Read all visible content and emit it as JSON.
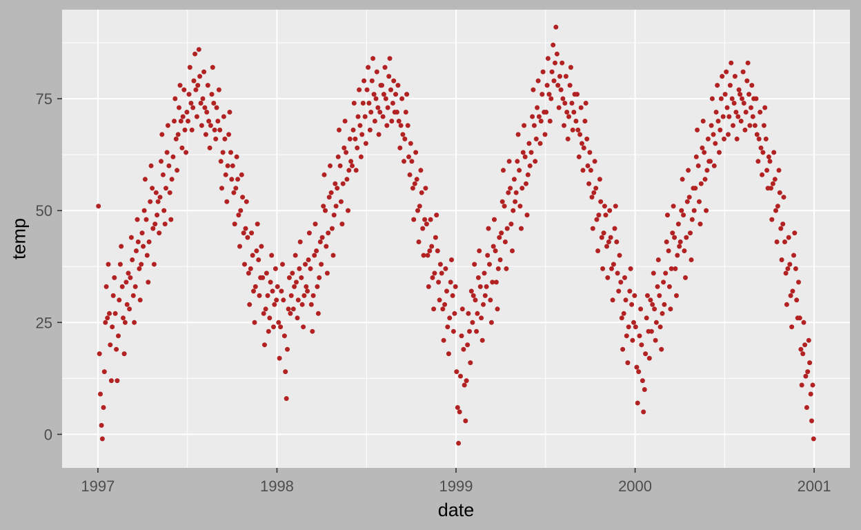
{
  "chart_data": {
    "type": "scatter",
    "title": "",
    "xlabel": "date",
    "ylabel": "temp",
    "xlim": [
      1996.8,
      2001.2
    ],
    "ylim": [
      -7.5,
      94.9
    ],
    "x_major_ticks": [
      1997,
      1998,
      1999,
      2000,
      2001
    ],
    "x_tick_labels": [
      "1997",
      "1998",
      "1999",
      "2000",
      "2001"
    ],
    "x_minor_ticks": [
      1997.5,
      1998.5,
      1999.5,
      2000.5
    ],
    "y_major_ticks": [
      0,
      25,
      50,
      75
    ],
    "y_tick_labels": [
      "0",
      "25",
      "50",
      "75"
    ],
    "y_minor_ticks": [
      12.5,
      37.5,
      62.5,
      87.5
    ],
    "legend": "none",
    "grid": "on",
    "colors": {
      "point": "#B22222",
      "panel_bg": "#EBEBEB",
      "grid": "#FFFFFF",
      "outer_bg": "#B9B9B9",
      "tick_label": "#4D4D4D",
      "tick_mark": "#333333",
      "axis_title": "#000000"
    },
    "point_radius": 3.5,
    "x": [
      1997.003,
      1997.009,
      1997.014,
      1997.02,
      1997.025,
      1997.031,
      1997.036,
      1997.042,
      1997.047,
      1997.053,
      1997.058,
      1997.064,
      1997.069,
      1997.075,
      1997.08,
      1997.086,
      1997.092,
      1997.097,
      1997.103,
      1997.108,
      1997.114,
      1997.119,
      1997.125,
      1997.13,
      1997.136,
      1997.141,
      1997.147,
      1997.152,
      1997.158,
      1997.163,
      1997.17,
      1997.176,
      1997.181,
      1997.187,
      1997.192,
      1997.198,
      1997.203,
      1997.209,
      1997.214,
      1997.22,
      1997.225,
      1997.231,
      1997.236,
      1997.242,
      1997.247,
      1997.253,
      1997.259,
      1997.264,
      1997.27,
      1997.275,
      1997.281,
      1997.286,
      1997.292,
      1997.297,
      1997.303,
      1997.308,
      1997.314,
      1997.319,
      1997.325,
      1997.33,
      1997.336,
      1997.342,
      1997.347,
      1997.353,
      1997.358,
      1997.364,
      1997.369,
      1997.375,
      1997.38,
      1997.386,
      1997.391,
      1997.397,
      1997.402,
      1997.408,
      1997.413,
      1997.42,
      1997.426,
      1997.431,
      1997.437,
      1997.442,
      1997.448,
      1997.453,
      1997.459,
      1997.464,
      1997.47,
      1997.475,
      1997.481,
      1997.486,
      1997.492,
      1997.497,
      1997.503,
      1997.509,
      1997.514,
      1997.52,
      1997.525,
      1997.531,
      1997.536,
      1997.542,
      1997.547,
      1997.553,
      1997.558,
      1997.564,
      1997.569,
      1997.575,
      1997.58,
      1997.586,
      1997.592,
      1997.597,
      1997.603,
      1997.608,
      1997.614,
      1997.619,
      1997.625,
      1997.63,
      1997.636,
      1997.641,
      1997.647,
      1997.652,
      1997.658,
      1997.663,
      1997.67,
      1997.676,
      1997.681,
      1997.687,
      1997.692,
      1997.698,
      1997.703,
      1997.709,
      1997.714,
      1997.72,
      1997.725,
      1997.731,
      1997.736,
      1997.742,
      1997.747,
      1997.753,
      1997.759,
      1997.764,
      1997.77,
      1997.775,
      1997.781,
      1997.786,
      1997.792,
      1997.797,
      1997.803,
      1997.808,
      1997.814,
      1997.819,
      1997.825,
      1997.83,
      1997.836,
      1997.842,
      1997.847,
      1997.853,
      1997.858,
      1997.864,
      1997.869,
      1997.875,
      1997.88,
      1997.886,
      1997.891,
      1997.897,
      1997.902,
      1997.908,
      1997.913,
      1997.92,
      1997.926,
      1997.931,
      1997.937,
      1997.942,
      1997.948,
      1997.953,
      1997.959,
      1997.964,
      1997.97,
      1997.975,
      1997.981,
      1997.986,
      1997.992,
      1997.997,
      1998.003,
      1998.009,
      1998.014,
      1998.02,
      1998.025,
      1998.031,
      1998.036,
      1998.042,
      1998.047,
      1998.053,
      1998.058,
      1998.064,
      1998.069,
      1998.075,
      1998.08,
      1998.086,
      1998.092,
      1998.097,
      1998.103,
      1998.108,
      1998.114,
      1998.119,
      1998.125,
      1998.13,
      1998.136,
      1998.141,
      1998.147,
      1998.152,
      1998.158,
      1998.163,
      1998.17,
      1998.176,
      1998.181,
      1998.187,
      1998.192,
      1998.198,
      1998.203,
      1998.209,
      1998.214,
      1998.22,
      1998.225,
      1998.231,
      1998.236,
      1998.242,
      1998.247,
      1998.253,
      1998.259,
      1998.264,
      1998.27,
      1998.275,
      1998.281,
      1998.286,
      1998.292,
      1998.297,
      1998.303,
      1998.308,
      1998.314,
      1998.319,
      1998.325,
      1998.33,
      1998.336,
      1998.342,
      1998.347,
      1998.353,
      1998.358,
      1998.364,
      1998.369,
      1998.375,
      1998.38,
      1998.386,
      1998.391,
      1998.397,
      1998.402,
      1998.408,
      1998.413,
      1998.42,
      1998.426,
      1998.431,
      1998.437,
      1998.442,
      1998.448,
      1998.453,
      1998.459,
      1998.464,
      1998.47,
      1998.475,
      1998.481,
      1998.486,
      1998.492,
      1998.497,
      1998.503,
      1998.509,
      1998.514,
      1998.52,
      1998.525,
      1998.531,
      1998.536,
      1998.542,
      1998.547,
      1998.553,
      1998.558,
      1998.564,
      1998.569,
      1998.575,
      1998.58,
      1998.586,
      1998.592,
      1998.597,
      1998.603,
      1998.608,
      1998.614,
      1998.619,
      1998.625,
      1998.63,
      1998.636,
      1998.641,
      1998.647,
      1998.652,
      1998.658,
      1998.663,
      1998.67,
      1998.676,
      1998.681,
      1998.687,
      1998.692,
      1998.698,
      1998.703,
      1998.709,
      1998.714,
      1998.72,
      1998.725,
      1998.731,
      1998.736,
      1998.742,
      1998.747,
      1998.753,
      1998.759,
      1998.764,
      1998.77,
      1998.775,
      1998.781,
      1998.786,
      1998.792,
      1998.797,
      1998.803,
      1998.808,
      1998.814,
      1998.819,
      1998.825,
      1998.83,
      1998.836,
      1998.842,
      1998.847,
      1998.853,
      1998.858,
      1998.864,
      1998.869,
      1998.875,
      1998.88,
      1998.886,
      1998.891,
      1998.897,
      1998.902,
      1998.908,
      1998.913,
      1998.92,
      1998.926,
      1998.931,
      1998.937,
      1998.942,
      1998.948,
      1998.953,
      1998.959,
      1998.964,
      1998.97,
      1998.975,
      1998.981,
      1998.986,
      1998.992,
      1998.997,
      1999.003,
      1999.009,
      1999.014,
      1999.02,
      1999.025,
      1999.031,
      1999.036,
      1999.042,
      1999.047,
      1999.053,
      1999.058,
      1999.064,
      1999.069,
      1999.075,
      1999.08,
      1999.086,
      1999.092,
      1999.097,
      1999.103,
      1999.108,
      1999.114,
      1999.119,
      1999.125,
      1999.13,
      1999.136,
      1999.141,
      1999.147,
      1999.152,
      1999.158,
      1999.163,
      1999.17,
      1999.176,
      1999.181,
      1999.187,
      1999.192,
      1999.198,
      1999.203,
      1999.209,
      1999.214,
      1999.22,
      1999.225,
      1999.231,
      1999.236,
      1999.242,
      1999.247,
      1999.253,
      1999.259,
      1999.264,
      1999.27,
      1999.275,
      1999.281,
      1999.286,
      1999.292,
      1999.297,
      1999.303,
      1999.308,
      1999.314,
      1999.319,
      1999.325,
      1999.33,
      1999.336,
      1999.342,
      1999.347,
      1999.353,
      1999.358,
      1999.364,
      1999.369,
      1999.375,
      1999.38,
      1999.386,
      1999.391,
      1999.397,
      1999.402,
      1999.408,
      1999.413,
      1999.42,
      1999.426,
      1999.431,
      1999.437,
      1999.442,
      1999.448,
      1999.453,
      1999.459,
      1999.464,
      1999.47,
      1999.475,
      1999.481,
      1999.486,
      1999.492,
      1999.497,
      1999.503,
      1999.509,
      1999.514,
      1999.52,
      1999.525,
      1999.531,
      1999.536,
      1999.542,
      1999.547,
      1999.553,
      1999.558,
      1999.564,
      1999.569,
      1999.575,
      1999.58,
      1999.586,
      1999.592,
      1999.597,
      1999.603,
      1999.608,
      1999.614,
      1999.619,
      1999.625,
      1999.63,
      1999.636,
      1999.641,
      1999.647,
      1999.652,
      1999.658,
      1999.663,
      1999.67,
      1999.676,
      1999.681,
      1999.687,
      1999.692,
      1999.698,
      1999.703,
      1999.709,
      1999.714,
      1999.72,
      1999.725,
      1999.731,
      1999.736,
      1999.742,
      1999.747,
      1999.753,
      1999.759,
      1999.764,
      1999.77,
      1999.775,
      1999.781,
      1999.786,
      1999.792,
      1999.797,
      1999.803,
      1999.808,
      1999.814,
      1999.819,
      1999.825,
      1999.83,
      1999.836,
      1999.842,
      1999.847,
      1999.853,
      1999.858,
      1999.864,
      1999.869,
      1999.875,
      1999.88,
      1999.886,
      1999.891,
      1999.897,
      1999.902,
      1999.908,
      1999.913,
      1999.92,
      1999.926,
      1999.931,
      1999.937,
      1999.942,
      1999.948,
      1999.953,
      1999.959,
      1999.964,
      1999.97,
      1999.975,
      1999.981,
      1999.986,
      1999.992,
      1999.997,
      2000.003,
      2000.009,
      2000.014,
      2000.02,
      2000.025,
      2000.031,
      2000.036,
      2000.042,
      2000.047,
      2000.053,
      2000.058,
      2000.064,
      2000.069,
      2000.075,
      2000.08,
      2000.086,
      2000.092,
      2000.097,
      2000.103,
      2000.108,
      2000.114,
      2000.119,
      2000.125,
      2000.13,
      2000.136,
      2000.141,
      2000.147,
      2000.152,
      2000.158,
      2000.163,
      2000.17,
      2000.176,
      2000.181,
      2000.187,
      2000.192,
      2000.198,
      2000.203,
      2000.209,
      2000.214,
      2000.22,
      2000.225,
      2000.231,
      2000.236,
      2000.242,
      2000.247,
      2000.253,
      2000.259,
      2000.264,
      2000.27,
      2000.275,
      2000.281,
      2000.286,
      2000.292,
      2000.297,
      2000.303,
      2000.308,
      2000.314,
      2000.319,
      2000.325,
      2000.33,
      2000.336,
      2000.342,
      2000.347,
      2000.353,
      2000.358,
      2000.364,
      2000.369,
      2000.375,
      2000.38,
      2000.386,
      2000.391,
      2000.397,
      2000.402,
      2000.408,
      2000.413,
      2000.42,
      2000.426,
      2000.431,
      2000.437,
      2000.442,
      2000.448,
      2000.453,
      2000.459,
      2000.464,
      2000.47,
      2000.475,
      2000.481,
      2000.486,
      2000.492,
      2000.497,
      2000.503,
      2000.509,
      2000.514,
      2000.52,
      2000.525,
      2000.531,
      2000.536,
      2000.542,
      2000.547,
      2000.553,
      2000.558,
      2000.564,
      2000.569,
      2000.575,
      2000.58,
      2000.586,
      2000.592,
      2000.597,
      2000.603,
      2000.608,
      2000.614,
      2000.619,
      2000.625,
      2000.63,
      2000.636,
      2000.641,
      2000.647,
      2000.652,
      2000.658,
      2000.663,
      2000.67,
      2000.676,
      2000.681,
      2000.687,
      2000.692,
      2000.698,
      2000.703,
      2000.709,
      2000.714,
      2000.72,
      2000.725,
      2000.731,
      2000.736,
      2000.742,
      2000.747,
      2000.753,
      2000.759,
      2000.764,
      2000.77,
      2000.775,
      2000.781,
      2000.786,
      2000.792,
      2000.797,
      2000.803,
      2000.808,
      2000.814,
      2000.819,
      2000.825,
      2000.83,
      2000.836,
      2000.842,
      2000.847,
      2000.853,
      2000.858,
      2000.864,
      2000.869,
      2000.875,
      2000.88,
      2000.886,
      2000.891,
      2000.897,
      2000.902,
      2000.908,
      2000.913,
      2000.92,
      2000.926,
      2000.931,
      2000.937,
      2000.942,
      2000.948,
      2000.953,
      2000.959,
      2000.964,
      2000.97,
      2000.975,
      2000.981,
      2000.986,
      2000.992,
      2000.997
    ],
    "y": [
      51,
      18,
      9,
      2,
      -1,
      6,
      14,
      25,
      33,
      26,
      38,
      27,
      20,
      12,
      24,
      31,
      35,
      27,
      19,
      12,
      22,
      30,
      38,
      42,
      33,
      26,
      18,
      25,
      34,
      29,
      36,
      28,
      35,
      44,
      39,
      31,
      25,
      33,
      41,
      48,
      43,
      37,
      30,
      38,
      45,
      42,
      50,
      57,
      48,
      40,
      34,
      43,
      52,
      60,
      55,
      46,
      38,
      47,
      54,
      49,
      52,
      45,
      53,
      61,
      67,
      58,
      50,
      47,
      55,
      63,
      69,
      60,
      54,
      48,
      57,
      62,
      70,
      75,
      66,
      59,
      67,
      73,
      78,
      70,
      64,
      71,
      77,
      68,
      63,
      72,
      70,
      76,
      82,
      74,
      68,
      73,
      79,
      85,
      77,
      71,
      78,
      86,
      80,
      74,
      69,
      75,
      81,
      73,
      67,
      72,
      78,
      70,
      64,
      69,
      76,
      82,
      74,
      68,
      66,
      73,
      70,
      77,
      68,
      61,
      55,
      63,
      71,
      66,
      58,
      52,
      60,
      67,
      72,
      63,
      57,
      60,
      54,
      47,
      55,
      62,
      57,
      49,
      42,
      50,
      58,
      53,
      45,
      38,
      46,
      52,
      44,
      36,
      29,
      37,
      45,
      40,
      32,
      25,
      33,
      41,
      47,
      39,
      31,
      35,
      42,
      35,
      27,
      20,
      28,
      36,
      31,
      23,
      26,
      34,
      40,
      32,
      24,
      29,
      37,
      30,
      33,
      25,
      17,
      24,
      32,
      38,
      30,
      22,
      14,
      8,
      19,
      28,
      35,
      27,
      31,
      36,
      28,
      33,
      40,
      34,
      26,
      30,
      37,
      43,
      35,
      29,
      24,
      31,
      38,
      33,
      32,
      39,
      45,
      37,
      29,
      23,
      31,
      40,
      47,
      41,
      33,
      27,
      35,
      43,
      38,
      44,
      51,
      58,
      50,
      42,
      36,
      45,
      53,
      60,
      54,
      46,
      40,
      49,
      56,
      51,
      55,
      62,
      68,
      60,
      52,
      47,
      56,
      64,
      70,
      63,
      57,
      50,
      59,
      66,
      61,
      60,
      68,
      74,
      66,
      59,
      64,
      71,
      77,
      69,
      62,
      67,
      74,
      79,
      71,
      65,
      77,
      82,
      74,
      68,
      72,
      79,
      84,
      76,
      70,
      75,
      81,
      73,
      67,
      72,
      78,
      78,
      71,
      76,
      82,
      75,
      69,
      73,
      80,
      84,
      77,
      70,
      74,
      79,
      72,
      76,
      72,
      78,
      70,
      64,
      69,
      75,
      67,
      61,
      66,
      72,
      76,
      69,
      62,
      58,
      65,
      61,
      55,
      48,
      56,
      63,
      57,
      50,
      43,
      51,
      59,
      54,
      46,
      40,
      48,
      55,
      47,
      40,
      33,
      41,
      48,
      42,
      35,
      28,
      36,
      44,
      49,
      41,
      34,
      30,
      38,
      36,
      28,
      21,
      29,
      37,
      32,
      24,
      18,
      26,
      34,
      39,
      31,
      23,
      27,
      33,
      14,
      6,
      -2,
      5,
      13,
      22,
      28,
      19,
      11,
      3,
      12,
      20,
      27,
      23,
      16,
      32,
      25,
      31,
      38,
      30,
      23,
      27,
      35,
      41,
      33,
      26,
      21,
      29,
      36,
      31,
      33,
      40,
      46,
      38,
      30,
      25,
      34,
      42,
      48,
      41,
      34,
      28,
      37,
      44,
      39,
      45,
      52,
      59,
      51,
      43,
      37,
      46,
      54,
      61,
      55,
      47,
      41,
      50,
      57,
      52,
      54,
      61,
      67,
      59,
      51,
      46,
      55,
      63,
      69,
      62,
      56,
      49,
      58,
      65,
      60,
      63,
      71,
      77,
      69,
      61,
      66,
      73,
      79,
      71,
      65,
      70,
      76,
      81,
      72,
      67,
      72,
      78,
      84,
      76,
      70,
      75,
      81,
      87,
      79,
      83,
      91,
      85,
      78,
      73,
      80,
      77,
      83,
      75,
      69,
      74,
      80,
      72,
      66,
      71,
      78,
      82,
      74,
      68,
      72,
      76,
      70,
      76,
      68,
      62,
      67,
      73,
      65,
      59,
      64,
      70,
      74,
      66,
      60,
      56,
      63,
      59,
      53,
      46,
      54,
      61,
      55,
      48,
      41,
      49,
      57,
      52,
      44,
      37,
      45,
      51,
      49,
      42,
      35,
      43,
      50,
      44,
      37,
      30,
      38,
      46,
      51,
      43,
      36,
      32,
      40,
      34,
      26,
      19,
      27,
      35,
      30,
      22,
      16,
      24,
      32,
      37,
      29,
      21,
      25,
      31,
      24,
      15,
      7,
      14,
      22,
      28,
      20,
      12,
      5,
      10,
      18,
      26,
      31,
      23,
      17,
      30,
      23,
      29,
      36,
      28,
      21,
      25,
      33,
      39,
      31,
      24,
      19,
      27,
      34,
      29,
      36,
      43,
      49,
      41,
      33,
      28,
      37,
      45,
      51,
      44,
      37,
      31,
      40,
      47,
      42,
      43,
      50,
      57,
      49,
      41,
      35,
      44,
      52,
      59,
      53,
      45,
      39,
      48,
      55,
      50,
      55,
      62,
      68,
      60,
      52,
      47,
      56,
      64,
      70,
      63,
      57,
      50,
      59,
      66,
      61,
      61,
      69,
      75,
      67,
      60,
      65,
      72,
      78,
      70,
      63,
      68,
      75,
      80,
      71,
      66,
      76,
      81,
      73,
      67,
      71,
      78,
      83,
      75,
      69,
      74,
      80,
      72,
      66,
      71,
      77,
      76,
      70,
      75,
      81,
      74,
      68,
      72,
      79,
      83,
      76,
      69,
      73,
      78,
      71,
      75,
      69,
      75,
      67,
      61,
      66,
      72,
      64,
      58,
      63,
      69,
      73,
      66,
      59,
      55,
      62,
      61,
      55,
      48,
      56,
      63,
      57,
      50,
      43,
      51,
      59,
      54,
      46,
      39,
      47,
      53,
      43,
      36,
      29,
      37,
      44,
      38,
      31,
      24,
      32,
      40,
      45,
      37,
      30,
      26,
      34,
      26,
      19,
      11,
      18,
      25,
      20,
      13,
      6,
      14,
      21,
      16,
      9,
      3,
      11,
      -1
    ]
  }
}
